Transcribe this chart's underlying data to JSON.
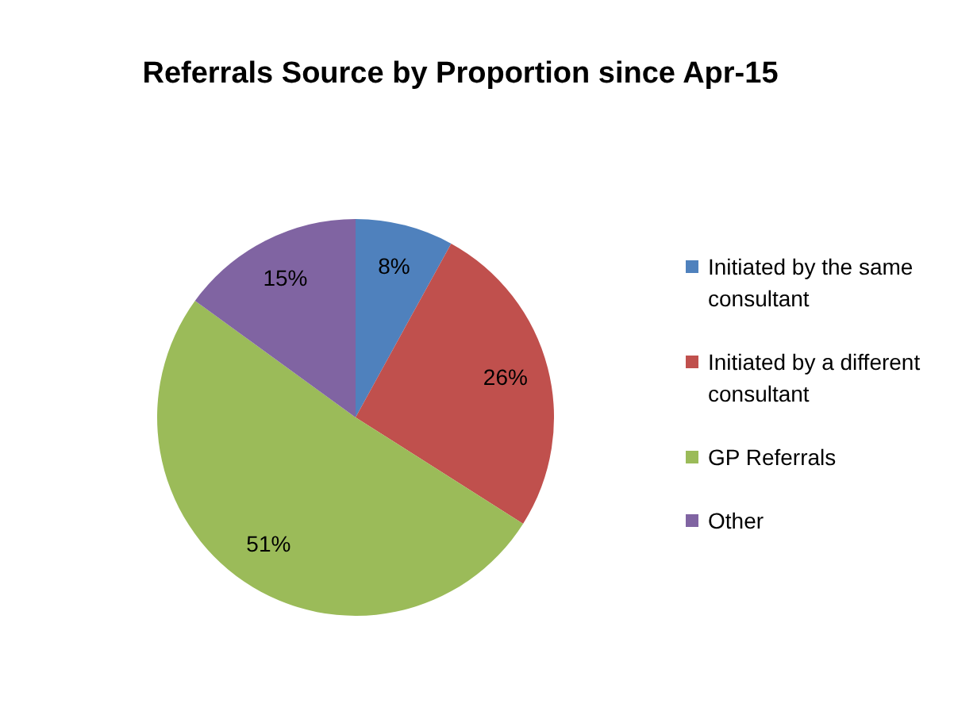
{
  "chart_data": {
    "type": "pie",
    "title": "Referrals Source by Proportion since Apr-15",
    "categories": [
      "Initiated by the same consultant",
      "Initiated by a different consultant",
      "GP Referrals",
      "Other"
    ],
    "values": [
      8,
      26,
      51,
      15
    ],
    "value_labels": [
      "8%",
      "26%",
      "51%",
      "15%"
    ],
    "colors": [
      "#4f81bd",
      "#c0504d",
      "#9bbb59",
      "#8064a2"
    ],
    "legend": "right"
  }
}
